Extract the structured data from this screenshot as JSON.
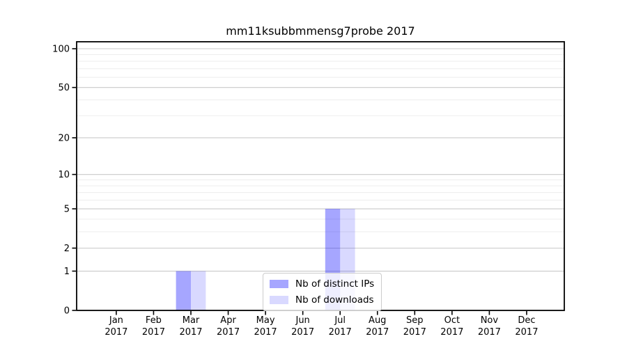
{
  "chart_data": {
    "type": "bar",
    "title": "mm11ksubbmmensg7probe 2017",
    "xlabel": "",
    "ylabel": "",
    "categories": [
      "Jan 2017",
      "Feb 2017",
      "Mar 2017",
      "Apr 2017",
      "May 2017",
      "Jun 2017",
      "Jul 2017",
      "Aug 2017",
      "Sep 2017",
      "Oct 2017",
      "Nov 2017",
      "Dec 2017"
    ],
    "series": [
      {
        "name": "Nb of distinct IPs",
        "color": "#0000ff",
        "alpha": 0.35,
        "on_white_hex": "#a9a9f4",
        "values": [
          0,
          0,
          1,
          0,
          0,
          0,
          5,
          0,
          0,
          0,
          0,
          0
        ]
      },
      {
        "name": "Nb of downloads",
        "color": "#0000ff",
        "alpha": 0.15,
        "on_white_hex": "#d8d8f7",
        "values": [
          0,
          0,
          1,
          0,
          0,
          0,
          5,
          0,
          0,
          0,
          0,
          0
        ]
      }
    ],
    "yscale": "log1p",
    "yticks": [
      0,
      1,
      2,
      5,
      10,
      20,
      50,
      100
    ],
    "y_minor_gridlines": [
      3,
      4,
      6,
      7,
      8,
      9,
      30,
      40,
      60,
      70,
      80,
      90
    ],
    "ylim": [
      0,
      113
    ],
    "grid": true,
    "legend_position": "inside lower center"
  },
  "legend": {
    "items": [
      {
        "label": "Nb of distinct IPs"
      },
      {
        "label": "Nb of downloads"
      }
    ]
  },
  "colors": {
    "background": "#ffffff",
    "spine": "#000000",
    "major_gridline": "#c9c9c9",
    "minor_gridline": "#ededed",
    "text": "#000000",
    "legend_border": "#cccccc"
  }
}
